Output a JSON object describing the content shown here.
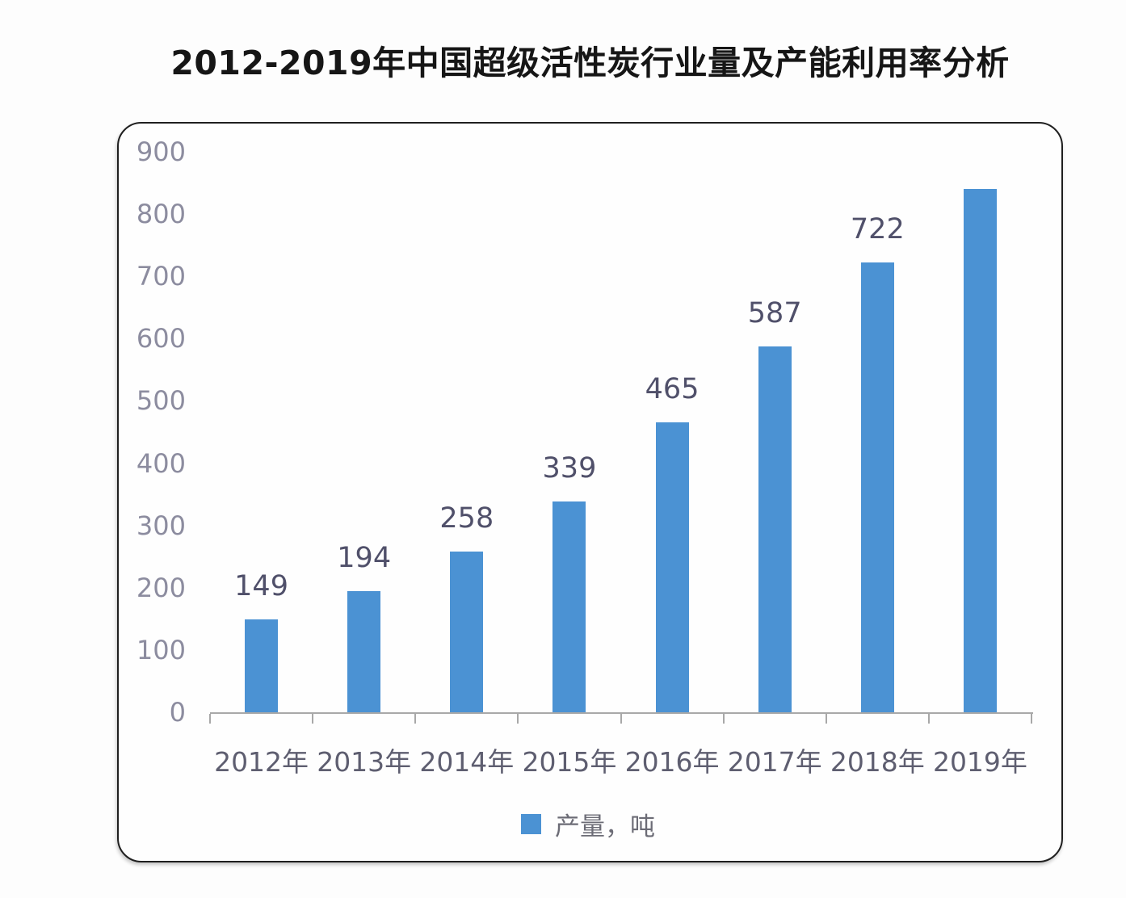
{
  "title": "2012-2019年中国超级活性炭行业量及产能利用率分析",
  "chart_data": {
    "type": "bar",
    "title": "2012-2019年中国超级活性炭行业量及产能利用率分析",
    "categories": [
      "2012年",
      "2013年",
      "2014年",
      "2015年",
      "2016年",
      "2017年",
      "2018年",
      "2019年"
    ],
    "series": [
      {
        "name": "产量，吨",
        "values": [
          149,
          194,
          258,
          339,
          465,
          587,
          722,
          840
        ],
        "data_labels": [
          "149",
          "194",
          "258",
          "339",
          "465",
          "587",
          "722",
          ""
        ]
      }
    ],
    "xlabel": "",
    "ylabel": "",
    "ylim": [
      0,
      900
    ],
    "yticks": [
      0,
      100,
      200,
      300,
      400,
      500,
      600,
      700,
      800,
      900
    ],
    "gridlines": false,
    "legend": {
      "label": "产量，吨",
      "position": "bottom"
    }
  },
  "colors": {
    "bar": "#4b92d3",
    "axis_line": "#a8a8a8",
    "y_tick_label": "#8c8c9f",
    "x_tick_label": "#5e5e70",
    "data_label": "#50506a",
    "legend_text": "#6c6c76",
    "title_text": "#161616",
    "frame_border": "#1f1f1f",
    "background": "#fdfdfd"
  }
}
